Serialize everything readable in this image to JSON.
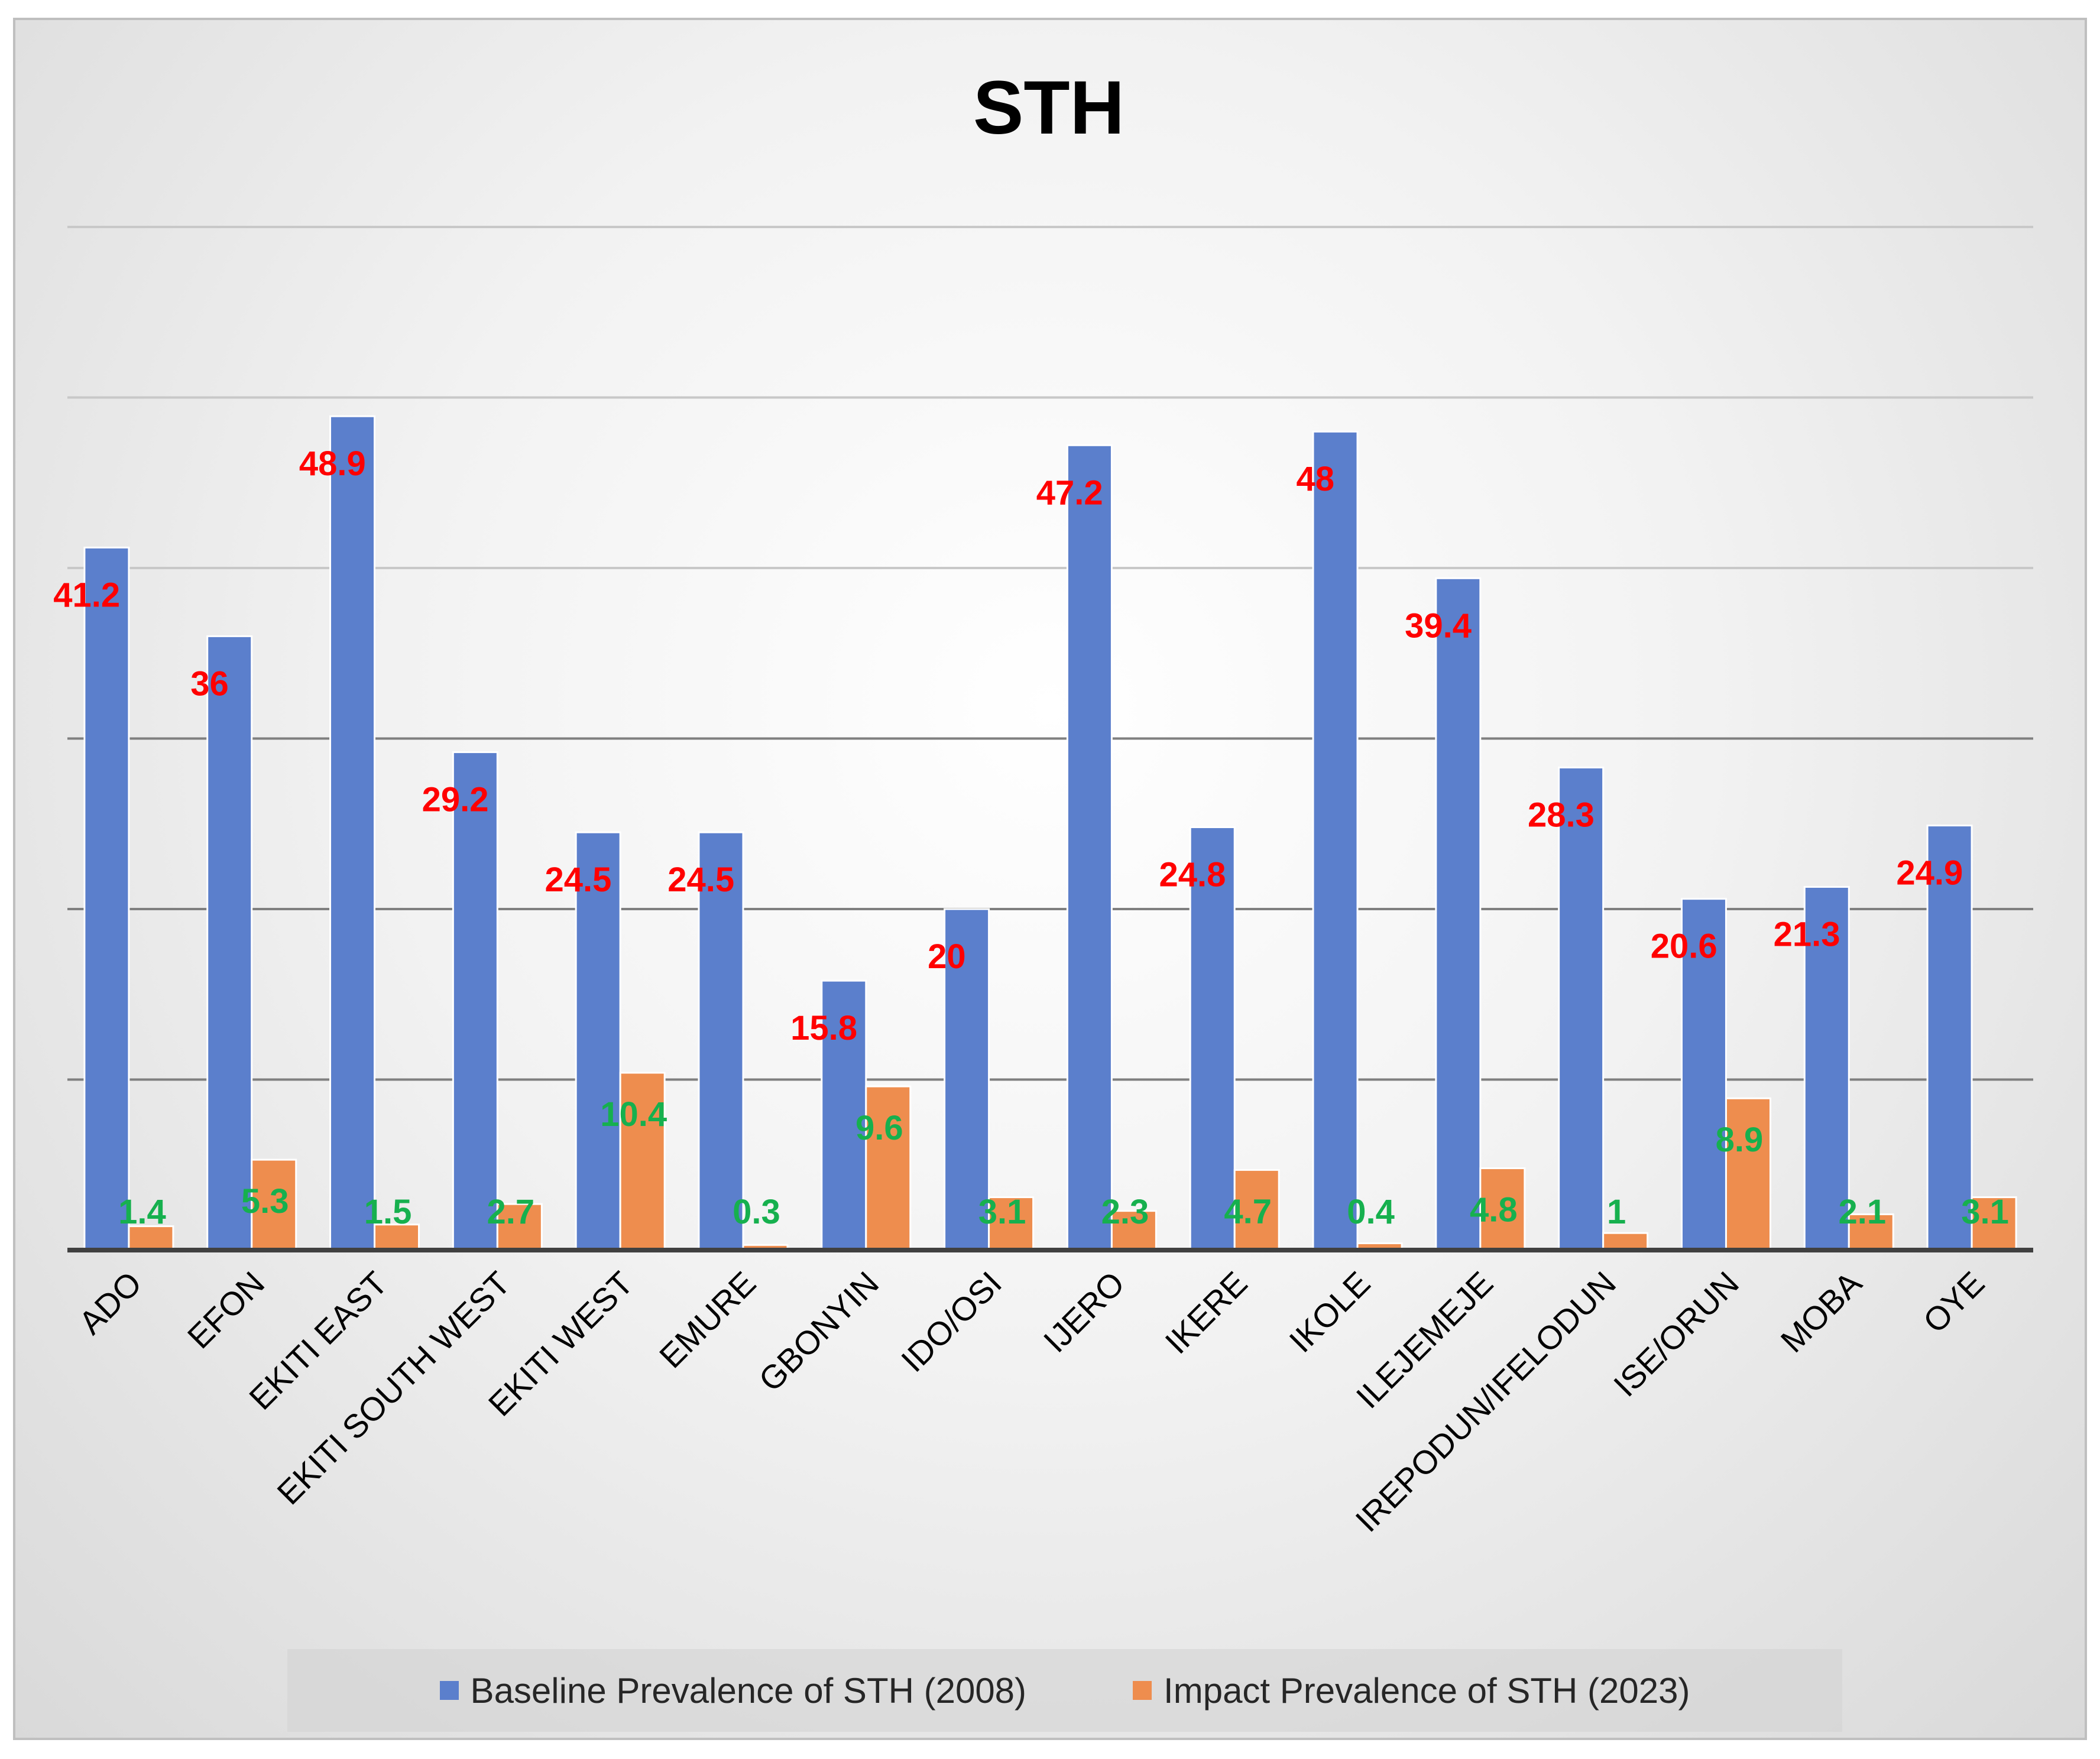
{
  "chart_data": {
    "type": "bar",
    "title": "STH",
    "xlabel": "",
    "ylabel": "",
    "ylim": [
      0,
      60
    ],
    "grid": true,
    "legend_position": "bottom",
    "categories": [
      "ADO",
      "EFON",
      "EKITI EAST",
      "EKITI SOUTH WEST",
      "EKITI WEST",
      "EMURE",
      "GBONYIN",
      "IDO/OSI",
      "IJERO",
      "IKERE",
      "IKOLE",
      "ILEJEMEJE",
      "IREPODUN/IFELODUN",
      "ISE/ORUN",
      "MOBA",
      "OYE"
    ],
    "series": [
      {
        "name": "Baseline Prevalence of STH (2008)",
        "color": "#5b7fcc",
        "label_color": "#ff0000",
        "values": [
          41.2,
          36,
          48.9,
          29.2,
          24.5,
          24.5,
          15.8,
          20,
          47.2,
          24.8,
          48,
          39.4,
          28.3,
          20.6,
          21.3,
          24.9
        ],
        "labels": [
          "41.2",
          "36",
          "48.9",
          "29.2",
          "24.5",
          "24.5",
          "15.8",
          "20",
          "47.2",
          "24.8",
          "48",
          "39.4",
          "28.3",
          "20.6",
          "21.3",
          "24.9"
        ]
      },
      {
        "name": "Impact Prevalence of STH (2023)",
        "color": "#ee8d4e",
        "label_color": "#16b04e",
        "values": [
          1.4,
          5.3,
          1.5,
          2.7,
          10.4,
          0.3,
          9.6,
          3.1,
          2.3,
          4.7,
          0.4,
          4.8,
          1,
          8.9,
          2.1,
          3.1
        ],
        "labels": [
          "1.4",
          "5.3",
          "1.5",
          "2.7",
          "10.4",
          "0.3",
          "9.6",
          "3.1",
          "2.3",
          "4.7",
          "0.4",
          "4.8",
          "1",
          "8.9",
          "2.1",
          "3.1"
        ]
      }
    ]
  }
}
